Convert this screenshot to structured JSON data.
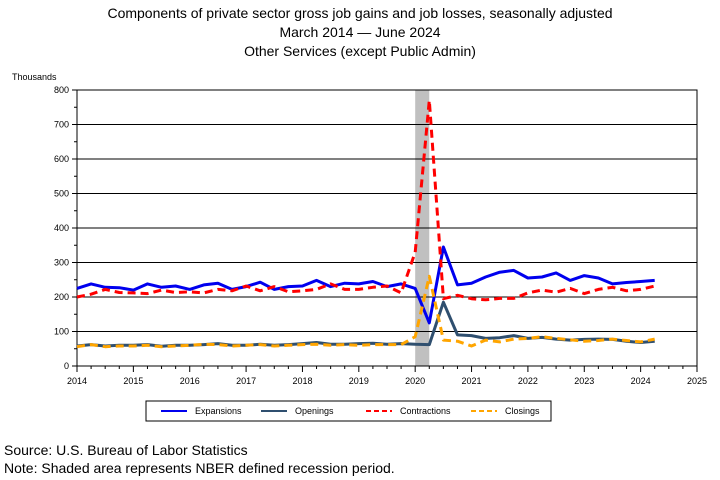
{
  "title": {
    "line1": "Components of private sector gross job gains and job losses, seasonally adjusted",
    "line2_start": "March 2014",
    "line2_dash": "—",
    "line2_end": "June 2024",
    "line3": "Other Services (except Public Admin)"
  },
  "footer": {
    "source": "Source: U.S. Bureau of Labor Statistics",
    "note": "Note: Shaded area represents NBER defined recession period."
  },
  "chart_data": {
    "type": "line",
    "ylabel": "Thousands",
    "xlabel": "",
    "xlim": [
      2014,
      2025
    ],
    "ylim": [
      0,
      800
    ],
    "yticks": [
      0,
      100,
      200,
      300,
      400,
      500,
      600,
      700,
      800
    ],
    "xticks": [
      2014,
      2015,
      2016,
      2017,
      2018,
      2019,
      2020,
      2021,
      2022,
      2023,
      2024,
      2025
    ],
    "grid": "horizontal",
    "legend_position": "bottom",
    "recession": {
      "start": 2020.0,
      "end": 2020.25,
      "color": "#c0c0c0"
    },
    "x": [
      2014.0,
      2014.25,
      2014.5,
      2014.75,
      2015.0,
      2015.25,
      2015.5,
      2015.75,
      2016.0,
      2016.25,
      2016.5,
      2016.75,
      2017.0,
      2017.25,
      2017.5,
      2017.75,
      2018.0,
      2018.25,
      2018.5,
      2018.75,
      2019.0,
      2019.25,
      2019.5,
      2019.75,
      2020.0,
      2020.25,
      2020.5,
      2020.75,
      2021.0,
      2021.25,
      2021.5,
      2021.75,
      2022.0,
      2022.25,
      2022.5,
      2022.75,
      2023.0,
      2023.25,
      2023.5,
      2023.75,
      2024.0,
      2024.25
    ],
    "series": [
      {
        "name": "Expansions",
        "color": "#0000ee",
        "dash": "solid",
        "values": [
          225,
          238,
          228,
          227,
          220,
          238,
          228,
          232,
          222,
          235,
          240,
          222,
          230,
          243,
          222,
          230,
          232,
          248,
          230,
          240,
          238,
          245,
          230,
          238,
          225,
          125,
          345,
          235,
          240,
          258,
          272,
          277,
          255,
          258,
          270,
          248,
          262,
          255,
          238,
          242,
          245,
          248
        ]
      },
      {
        "name": "Openings",
        "color": "#2f4f6f",
        "dash": "solid",
        "values": [
          58,
          62,
          58,
          60,
          60,
          62,
          57,
          60,
          60,
          62,
          65,
          60,
          60,
          63,
          60,
          62,
          65,
          68,
          63,
          63,
          65,
          66,
          63,
          65,
          63,
          62,
          185,
          90,
          88,
          80,
          82,
          88,
          80,
          83,
          78,
          75,
          77,
          78,
          77,
          72,
          68,
          72
        ]
      },
      {
        "name": "Contractions",
        "color": "#ff0000",
        "dash": "dashed",
        "values": [
          200,
          208,
          222,
          213,
          212,
          210,
          220,
          213,
          215,
          212,
          222,
          218,
          232,
          218,
          230,
          215,
          218,
          222,
          238,
          222,
          222,
          228,
          232,
          212,
          330,
          770,
          195,
          205,
          195,
          192,
          196,
          196,
          212,
          220,
          214,
          225,
          210,
          222,
          228,
          218,
          222,
          232
        ]
      },
      {
        "name": "Closings",
        "color": "#ffa500",
        "dash": "dashed",
        "values": [
          56,
          62,
          56,
          58,
          58,
          60,
          56,
          58,
          60,
          63,
          62,
          58,
          60,
          62,
          58,
          60,
          62,
          63,
          60,
          62,
          60,
          62,
          62,
          62,
          85,
          260,
          75,
          72,
          58,
          75,
          70,
          78,
          80,
          85,
          80,
          76,
          72,
          74,
          78,
          74,
          70,
          78
        ]
      }
    ]
  }
}
